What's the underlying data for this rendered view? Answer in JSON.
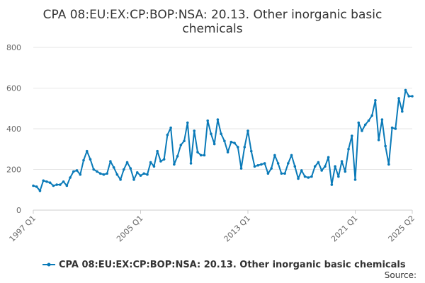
{
  "chart_data": {
    "type": "line",
    "title": [
      "CPA 08:EU:EX:CP:BOP:NSA: 20.13. Other inorganic basic",
      "chemicals"
    ],
    "xlabel": "",
    "ylabel": "",
    "ylim": [
      0,
      800
    ],
    "yticks": [
      0,
      200,
      400,
      600,
      800
    ],
    "xtick_labels": [
      "1997 Q1",
      "2005 Q1",
      "2013 Q1",
      "2021 Q1",
      "2025 Q2"
    ],
    "grid": true,
    "legend_position": "bottom",
    "source_label": "Source:",
    "series": [
      {
        "name": "CPA 08:EU:EX:CP:BOP:NSA: 20.13. Other inorganic basic chemicals",
        "color": "#0a7ab8",
        "x_start": "1997 Q1",
        "frequency": "quarterly",
        "values": [
          120,
          115,
          95,
          145,
          140,
          135,
          120,
          125,
          125,
          140,
          120,
          160,
          190,
          195,
          175,
          245,
          290,
          250,
          200,
          190,
          180,
          175,
          180,
          240,
          210,
          175,
          150,
          200,
          235,
          205,
          150,
          185,
          170,
          180,
          175,
          235,
          215,
          290,
          240,
          250,
          370,
          405,
          225,
          265,
          320,
          340,
          430,
          230,
          390,
          285,
          270,
          270,
          440,
          375,
          325,
          445,
          375,
          340,
          285,
          335,
          330,
          310,
          205,
          310,
          390,
          290,
          215,
          220,
          225,
          230,
          180,
          205,
          270,
          230,
          180,
          180,
          230,
          270,
          215,
          155,
          195,
          165,
          160,
          165,
          215,
          235,
          195,
          215,
          260,
          125,
          215,
          165,
          240,
          190,
          300,
          365,
          150,
          430,
          390,
          420,
          440,
          465,
          540,
          345,
          445,
          315,
          225,
          405,
          400,
          550,
          485,
          590,
          560,
          560
        ]
      }
    ]
  }
}
